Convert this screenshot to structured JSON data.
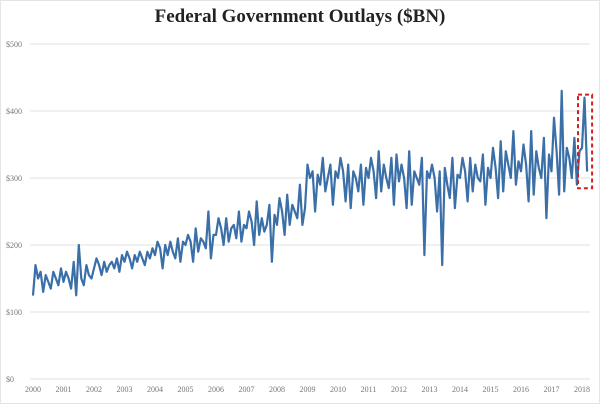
{
  "chart_data": {
    "type": "line",
    "title": "Federal Government Outlays ($BN)",
    "xlabel": "",
    "ylabel": "",
    "ylim": [
      0,
      500
    ],
    "y_ticks": [
      "$0",
      "$100",
      "$200",
      "$300",
      "$400",
      "$500"
    ],
    "y_tick_values": [
      0,
      100,
      200,
      300,
      400,
      500
    ],
    "x_ticks": [
      "2000",
      "2001",
      "2002",
      "2003",
      "2004",
      "2005",
      "2006",
      "2007",
      "2008",
      "2009",
      "2010",
      "2011",
      "2012",
      "2013",
      "2014",
      "2015",
      "2016",
      "2017",
      "2018"
    ],
    "grid": true,
    "legend": "none",
    "series_color": "#3a6fa8",
    "highlight_color": "#cc2222",
    "highlight": "last 3 months of 2018 (dashed red box)",
    "x_start": "2000-01",
    "frequency": "monthly",
    "series": [
      {
        "values": [
          125,
          170,
          150,
          160,
          130,
          155,
          145,
          135,
          160,
          150,
          140,
          165,
          145,
          160,
          150,
          135,
          175,
          125,
          200,
          150,
          140,
          170,
          155,
          150,
          165,
          180,
          170,
          155,
          175,
          160,
          170,
          175,
          165,
          180,
          160,
          185,
          175,
          190,
          180,
          165,
          185,
          175,
          190,
          180,
          170,
          190,
          180,
          195,
          185,
          205,
          195,
          165,
          200,
          185,
          205,
          190,
          180,
          210,
          175,
          205,
          200,
          215,
          205,
          175,
          225,
          190,
          210,
          205,
          195,
          250,
          180,
          215,
          215,
          240,
          225,
          200,
          240,
          205,
          225,
          230,
          210,
          250,
          205,
          230,
          225,
          250,
          235,
          200,
          265,
          215,
          240,
          220,
          230,
          260,
          175,
          245,
          230,
          270,
          250,
          215,
          275,
          230,
          260,
          250,
          240,
          290,
          230,
          255,
          320,
          300,
          310,
          250,
          305,
          290,
          330,
          280,
          300,
          320,
          260,
          310,
          300,
          330,
          310,
          265,
          320,
          255,
          310,
          300,
          280,
          320,
          260,
          315,
          300,
          330,
          310,
          270,
          340,
          280,
          320,
          300,
          285,
          330,
          260,
          335,
          295,
          320,
          300,
          255,
          340,
          260,
          310,
          300,
          290,
          330,
          185,
          310,
          300,
          320,
          300,
          250,
          310,
          170,
          315,
          290,
          270,
          330,
          255,
          305,
          300,
          330,
          310,
          265,
          330,
          280,
          320,
          300,
          295,
          335,
          260,
          315,
          300,
          345,
          315,
          270,
          355,
          280,
          340,
          320,
          300,
          370,
          290,
          325,
          310,
          350,
          320,
          265,
          370,
          275,
          340,
          315,
          300,
          360,
          240,
          335,
          310,
          390,
          340,
          275,
          430,
          280,
          345,
          330,
          300,
          360,
          290,
          340,
          345,
          420,
          310
        ]
      }
    ]
  }
}
